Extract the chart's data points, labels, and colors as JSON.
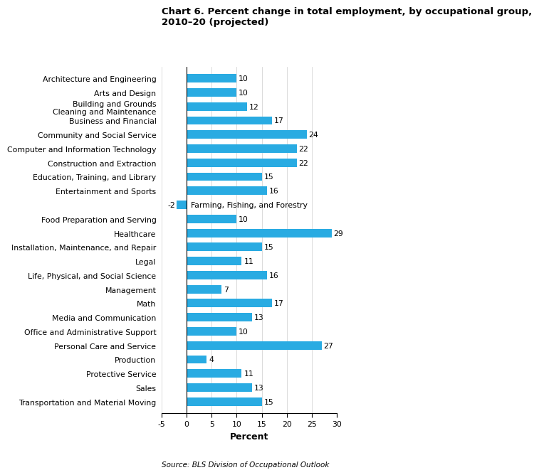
{
  "title_line1": "Chart 6. Percent change in total employment, by occupational group,",
  "title_line2": "2010–20 (projected)",
  "categories": [
    "Architecture and Engineering",
    "Arts and Design",
    "Building and Grounds\nCleaning and Maintenance",
    "Business and Financial",
    "Community and Social Service",
    "Computer and Information Technology",
    "Construction and Extraction",
    "Education, Training, and Library",
    "Entertainment and Sports",
    "Farming, Fishing, and Forestry",
    "Food Preparation and Serving",
    "Healthcare",
    "Installation, Maintenance, and Repair",
    "Legal",
    "Life, Physical, and Social Science",
    "Management",
    "Math",
    "Media and Communication",
    "Office and Administrative Support",
    "Personal Care and Service",
    "Production",
    "Protective Service",
    "Sales",
    "Transportation and Material Moving"
  ],
  "values": [
    10,
    10,
    12,
    17,
    24,
    22,
    22,
    15,
    16,
    -2,
    10,
    29,
    15,
    11,
    16,
    7,
    17,
    13,
    10,
    27,
    4,
    11,
    13,
    15
  ],
  "bar_color": "#29ABE2",
  "xlabel": "Percent",
  "xlim": [
    -5,
    30
  ],
  "xticks": [
    -5,
    0,
    5,
    10,
    15,
    20,
    25,
    30
  ],
  "source": "Source: BLS Division of Occupational Outlook",
  "farming_label": "Farming, Fishing, and Forestry",
  "title_fontsize": 9.5,
  "label_fontsize": 7.8,
  "value_fontsize": 7.8,
  "source_fontsize": 7.5
}
